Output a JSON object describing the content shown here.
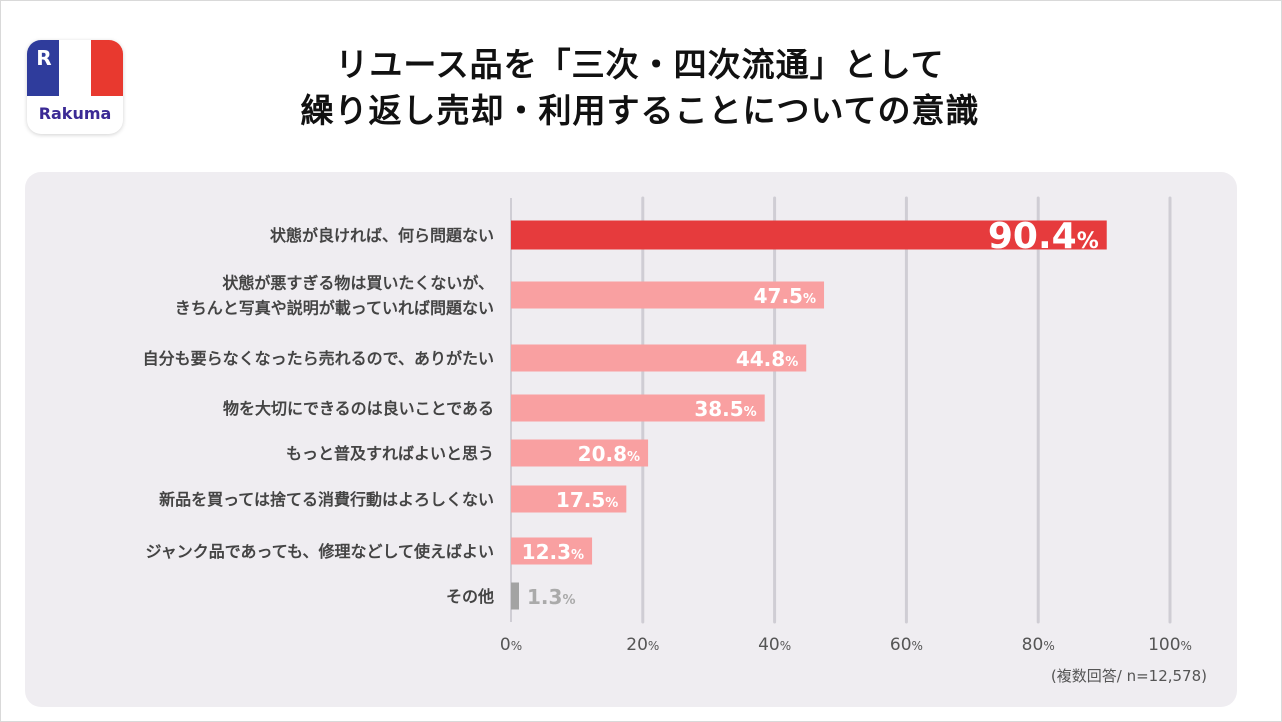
{
  "brand": {
    "logo_text": "Rakuma",
    "logo_mark": "R"
  },
  "title": {
    "line1": "リユース品を「三次・四次流通」として",
    "line2": "繰り返し売却・利用することについての意識"
  },
  "note": "(複数回答/ n=12,578)",
  "colors": {
    "top_bar": "#e63b3d",
    "bars": "#f9a0a1",
    "other_bar": "#a3a3a3",
    "other_label": "#aaaaaa",
    "grid": "#cfcdd4"
  },
  "chart_data": {
    "type": "bar",
    "orientation": "horizontal",
    "categories": [
      "状態が良ければ、何ら問題ない",
      "状態が悪すぎる物は買いたくないが、\nきちんと写真や説明が載っていれば問題ない",
      "自分も要らなくなったら売れるので、ありがたい",
      "物を大切にできるのは良いことである",
      "もっと普及すればよいと思う",
      "新品を買っては捨てる消費行動はよろしくない",
      "ジャンク品であっても、修理などして使えばよい",
      "その他"
    ],
    "values": [
      90.4,
      47.5,
      44.8,
      38.5,
      20.8,
      17.5,
      12.3,
      1.3
    ],
    "unit": "%",
    "xlim": [
      0,
      100
    ],
    "xticks": [
      0,
      20,
      40,
      60,
      80,
      100
    ],
    "grid": true
  }
}
